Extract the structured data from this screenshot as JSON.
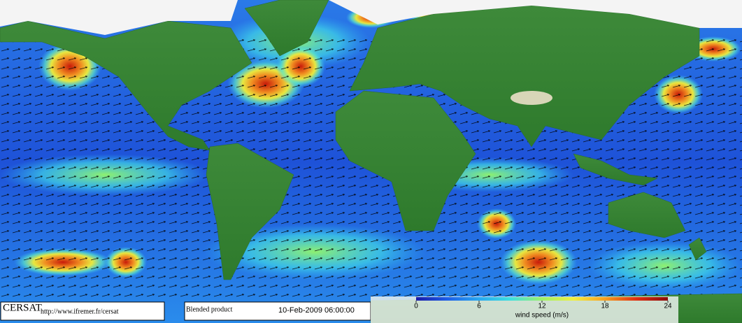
{
  "logo": "CERSAT",
  "url": "http://www.ifremer.fr/cersat",
  "product": "Blended product",
  "timestamp": "10-Feb-2009 06:00:00",
  "colorbar": {
    "label": "wind speed (m/s)",
    "range": [
      0,
      24
    ],
    "ticks": [
      0,
      6,
      12,
      18,
      24
    ],
    "colors": [
      "#1a1aa8",
      "#1e5fe8",
      "#2aa8f0",
      "#3ee0e0",
      "#9ef06a",
      "#f0f040",
      "#f8a020",
      "#e03010",
      "#8a0a0a"
    ]
  }
}
